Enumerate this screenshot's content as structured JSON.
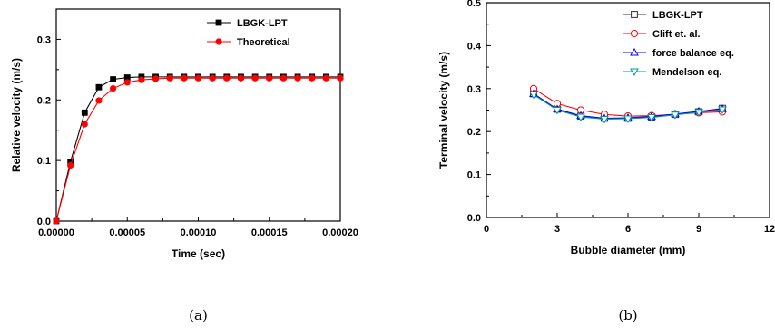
{
  "chart_data": [
    {
      "type": "line",
      "panel_caption": "(a)",
      "xlabel": "Time (sec)",
      "ylabel": "Relative velocity (m/s)",
      "xlim": [
        0,
        0.0002
      ],
      "ylim": [
        0,
        0.35
      ],
      "xticks": [
        0,
        5e-05,
        0.0001,
        0.00015,
        0.0002
      ],
      "xtick_labels": [
        "0.00000",
        "0.00005",
        "0.00010",
        "0.00015",
        "0.00020"
      ],
      "yticks": [
        0,
        0.1,
        0.2,
        0.3
      ],
      "ytick_labels": [
        "0.0",
        "0.1",
        "0.2",
        "0.3"
      ],
      "grid": false,
      "legend_position": "top-right",
      "series": [
        {
          "name": "LBGK-LPT",
          "color": "#000000",
          "marker": "filled-square",
          "x": [
            0,
            1e-05,
            2e-05,
            3e-05,
            4e-05,
            5e-05,
            6e-05,
            7e-05,
            8e-05,
            9e-05,
            0.0001,
            0.00011,
            0.00012,
            0.00013,
            0.00014,
            0.00015,
            0.00016,
            0.00017,
            0.00018,
            0.00019,
            0.0002
          ],
          "y": [
            0,
            0.098,
            0.179,
            0.221,
            0.234,
            0.237,
            0.238,
            0.238,
            0.238,
            0.238,
            0.238,
            0.238,
            0.238,
            0.238,
            0.238,
            0.238,
            0.238,
            0.238,
            0.238,
            0.238,
            0.238
          ]
        },
        {
          "name": "Theoretical",
          "color": "#ff0000",
          "marker": "filled-circle",
          "x": [
            0,
            1e-05,
            2e-05,
            3e-05,
            4e-05,
            5e-05,
            6e-05,
            7e-05,
            8e-05,
            9e-05,
            0.0001,
            0.00011,
            0.00012,
            0.00013,
            0.00014,
            0.00015,
            0.00016,
            0.00017,
            0.00018,
            0.00019,
            0.0002
          ],
          "y": [
            0,
            0.092,
            0.16,
            0.199,
            0.219,
            0.229,
            0.233,
            0.235,
            0.236,
            0.236,
            0.236,
            0.236,
            0.236,
            0.236,
            0.236,
            0.236,
            0.236,
            0.236,
            0.236,
            0.236,
            0.236
          ]
        }
      ]
    },
    {
      "type": "line",
      "panel_caption": "(b)",
      "xlabel": "Bubble diameter (mm)",
      "ylabel": "Terminal velocity (m/s)",
      "xlim": [
        0,
        12
      ],
      "ylim": [
        0,
        0.5
      ],
      "xticks": [
        0,
        3,
        6,
        9,
        12
      ],
      "xtick_labels": [
        "0",
        "3",
        "6",
        "9",
        "12"
      ],
      "yticks": [
        0,
        0.1,
        0.2,
        0.3,
        0.4,
        0.5
      ],
      "ytick_labels": [
        "0.0",
        "0.1",
        "0.2",
        "0.3",
        "0.4",
        "0.5"
      ],
      "grid": false,
      "legend_position": "top-right",
      "series": [
        {
          "name": "LBGK-LPT",
          "color": "#333333",
          "marker": "open-square",
          "x": [
            2,
            3,
            4,
            5,
            6,
            7,
            8,
            9,
            10
          ],
          "y": [
            0.288,
            0.252,
            0.236,
            0.231,
            0.231,
            0.234,
            0.24,
            0.246,
            0.254
          ]
        },
        {
          "name": "Clift et. al.",
          "color": "#ff0000",
          "marker": "open-circle",
          "x": [
            2,
            3,
            4,
            5,
            6,
            7,
            8,
            9,
            10
          ],
          "y": [
            0.3,
            0.265,
            0.25,
            0.24,
            0.236,
            0.237,
            0.24,
            0.244,
            0.246
          ]
        },
        {
          "name": "force balance eq.",
          "color": "#0000ff",
          "marker": "open-triangle-up",
          "x": [
            2,
            3,
            4,
            5,
            6,
            7,
            8,
            9,
            10
          ],
          "y": [
            0.288,
            0.252,
            0.237,
            0.231,
            0.232,
            0.235,
            0.241,
            0.247,
            0.253
          ]
        },
        {
          "name": "Mendelson eq.",
          "color": "#009999",
          "marker": "open-triangle-down",
          "x": [
            2,
            3,
            4,
            5,
            6,
            7,
            8,
            9,
            10
          ],
          "y": [
            0.286,
            0.25,
            0.234,
            0.229,
            0.23,
            0.233,
            0.239,
            0.245,
            0.251
          ]
        }
      ]
    }
  ]
}
